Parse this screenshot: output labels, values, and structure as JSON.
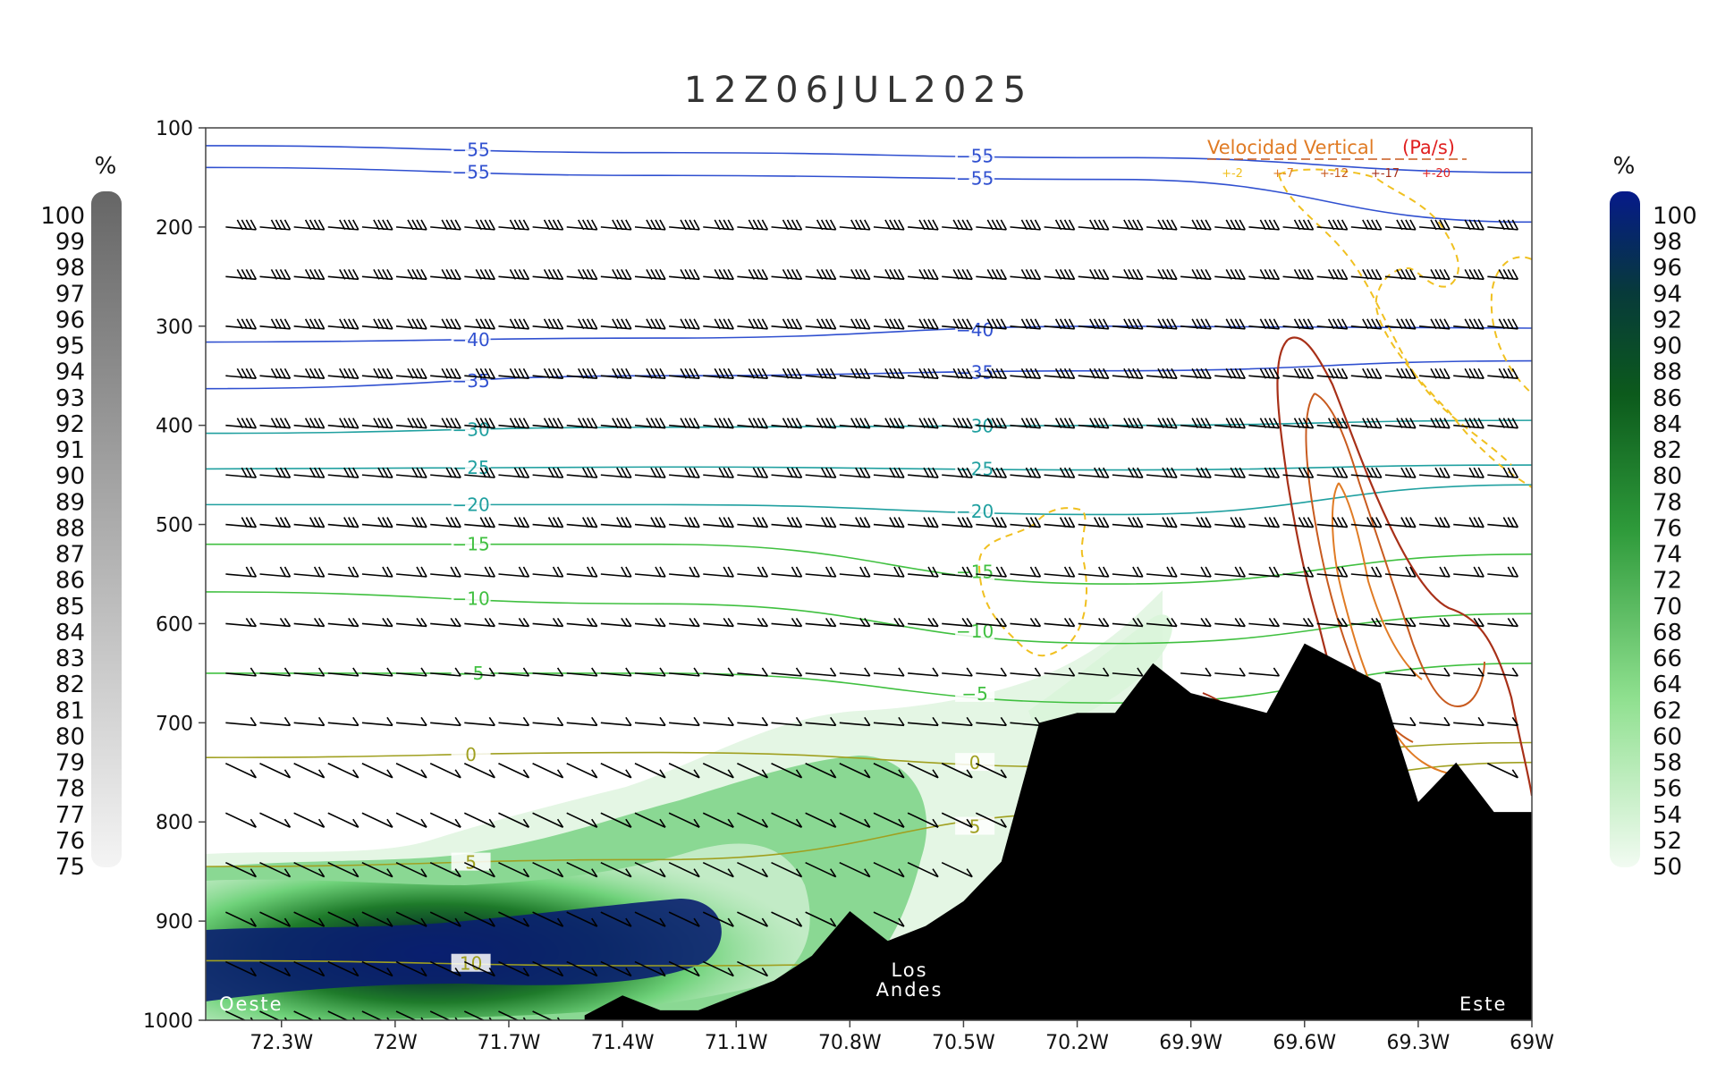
{
  "chart_data": {
    "type": "cross-section",
    "title": "12Z06JUL2025",
    "x_axis": {
      "ticks": [
        "72.3W",
        "72W",
        "71.7W",
        "71.4W",
        "71.1W",
        "70.8W",
        "70.5W",
        "70.2W",
        "69.9W",
        "69.6W",
        "69.3W",
        "69W"
      ],
      "range": [
        -72.5,
        -69.0
      ]
    },
    "y_axis": {
      "ticks": [
        "100",
        "200",
        "300",
        "400",
        "500",
        "600",
        "700",
        "800",
        "900",
        "1000"
      ],
      "range": [
        100,
        1000
      ],
      "inverted": true
    },
    "humidity_grey_colorbar": {
      "unit": "%",
      "labels": [
        "100",
        "99",
        "98",
        "97",
        "96",
        "95",
        "94",
        "93",
        "92",
        "91",
        "90",
        "89",
        "88",
        "87",
        "86",
        "85",
        "84",
        "83",
        "82",
        "81",
        "80",
        "79",
        "78",
        "77",
        "76",
        "75"
      ]
    },
    "humidity_green_colorbar": {
      "unit": "%",
      "labels": [
        "100",
        "98",
        "96",
        "94",
        "92",
        "90",
        "88",
        "86",
        "84",
        "82",
        "80",
        "78",
        "76",
        "74",
        "72",
        "70",
        "68",
        "66",
        "64",
        "62",
        "60",
        "58",
        "56",
        "54",
        "52",
        "50"
      ]
    },
    "temperature_isotherms": [
      {
        "label": "-55",
        "p": [
          118,
          125,
          130,
          145
        ]
      },
      {
        "label": "-55",
        "p": [
          140,
          148,
          152,
          195
        ]
      },
      {
        "label": "-40",
        "p": [
          316,
          312,
          300,
          302
        ]
      },
      {
        "label": "-35",
        "p": [
          363,
          350,
          345,
          335
        ]
      },
      {
        "label": "-30",
        "p": [
          408,
          402,
          400,
          395
        ]
      },
      {
        "label": "-25",
        "p": [
          444,
          442,
          445,
          440
        ]
      },
      {
        "label": "-20",
        "p": [
          480,
          480,
          490,
          460
        ]
      },
      {
        "label": "-15",
        "p": [
          520,
          520,
          560,
          530
        ]
      },
      {
        "label": "-10",
        "p": [
          568,
          580,
          620,
          590
        ]
      },
      {
        "label": "-5",
        "p": [
          650,
          650,
          680,
          640
        ]
      },
      {
        "label": "0",
        "p": [
          735,
          730,
          745,
          720
        ]
      },
      {
        "label": "5",
        "p": [
          845,
          838,
          790,
          740
        ]
      },
      {
        "label": "10",
        "p": [
          940,
          945,
          940,
          930
        ]
      }
    ],
    "annotations": {
      "west": "Oeste",
      "east": "Este",
      "andes_line1": "Los",
      "andes_line2": "Andes"
    },
    "vertical_velocity_legend": {
      "title": "Velocidad Vertical",
      "unit": "(Pa/s)",
      "levels": [
        "+-2",
        "+-7",
        "+-12",
        "+-17",
        "+-20"
      ],
      "colors": [
        "#f0c020",
        "#e07b24",
        "#c85a1e",
        "#a83018",
        "#e02020"
      ]
    },
    "terrain": {
      "x": [
        -71.5,
        -71.4,
        -71.3,
        -71.2,
        -71.1,
        -71.0,
        -70.9,
        -70.8,
        -70.7,
        -70.6,
        -70.5,
        -70.4,
        -70.3,
        -70.2,
        -70.1,
        -70.0,
        -69.9,
        -69.8,
        -69.7,
        -69.6,
        -69.5,
        -69.4,
        -69.3,
        -69.2,
        -69.1,
        -69.0
      ],
      "p": [
        995,
        975,
        990,
        990,
        975,
        960,
        935,
        890,
        920,
        905,
        880,
        840,
        700,
        690,
        690,
        640,
        670,
        680,
        690,
        620,
        640,
        660,
        780,
        740,
        790,
        790
      ]
    },
    "colors": {
      "terrain": "#000000",
      "isotherm_cold": "#3050d0",
      "isotherm_mid": "#20a0a0",
      "isotherm_warm": "#40c040",
      "isotherm_hot": "#a0a020",
      "humidity_max": "#0b1a6e",
      "humidity_min": "#e6f8e6",
      "upward_motion": "#f0c020",
      "downward_motion": "#a83018"
    }
  }
}
